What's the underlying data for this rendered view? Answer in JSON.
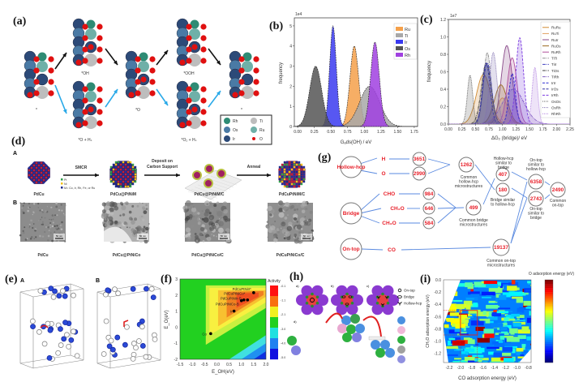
{
  "panel_labels": {
    "a": "(a)",
    "b": "(b)",
    "c": "(c)",
    "d": "(d)",
    "e": "(e)",
    "f": "(f)",
    "g": "(g)",
    "h": "(h)",
    "i": "(i)"
  },
  "panel_a": {
    "states": [
      "*",
      "*OH",
      "*O + Hₛ",
      "*O",
      "*OOH",
      "*O₂ + Hₛ",
      "*"
    ],
    "legend": [
      {
        "label": "Rh",
        "color": "#2e8b74"
      },
      {
        "label": "Ti",
        "color": "#bdbdbd"
      },
      {
        "label": "Os",
        "color": "#4a7aa5"
      },
      {
        "label": "Ru",
        "color": "#6fb0a8"
      },
      {
        "label": "Ir",
        "color": "#2c4a78"
      },
      {
        "label": "O",
        "color": "#e01010"
      }
    ],
    "arrow_colors": {
      "path1": "#111111",
      "path2": "#29a9e8"
    }
  },
  "panel_d": {
    "row_labels": {
      "A": "A",
      "B": "B"
    },
    "steps": [
      "SMCR",
      "Deposit on Carbon Support",
      "Anneal"
    ],
    "particles": [
      "PdCu",
      "PdCu@PtNiM",
      "PdCu@PtNiM/C",
      "PdCuPtNiM/C"
    ],
    "legend": [
      {
        "label": "Pt",
        "color": "#2fa04a"
      },
      {
        "label": "Ni",
        "color": "#f2c21a"
      },
      {
        "label": "M= Co, Ir, Rh, Fe, or Ru",
        "color": "#1a2a8a"
      }
    ],
    "tem_labels": [
      "PdCu",
      "PdCu@PtNiCo",
      "PdCu@PtNiCo/C",
      "PdCuPtNiCo/C"
    ],
    "scale_bar": "50 nm"
  },
  "panel_e": {
    "sub_labels": [
      "A",
      "B"
    ]
  },
  "panel_g": {
    "sites": [
      "Hollow-hcp",
      "Bridge",
      "On-top"
    ],
    "adsorbates": [
      "H",
      "O",
      "CHO",
      "CH₂O",
      "CH₃O",
      "CO"
    ],
    "counts": {
      "H": "3651",
      "O": "2990",
      "common_hollow": "1262",
      "CHO": "984",
      "CH2O": "646",
      "CH3O": "584",
      "common_bridge": "499",
      "hollow_sim_bridge": "407",
      "bridge_sim_hollow": "180",
      "ontop_sim_hollow": "6358",
      "ontop_sim_bridge": "2743",
      "common_ontop": "2490",
      "CO": "19137"
    },
    "captions": {
      "common_hollow": "Common hollow-hcp microstructures",
      "hollow_sim_bridge": "Hollow-hcp similar to bridge",
      "bridge_sim_hollow": "Bridge similar to hollow-hcp",
      "ontop_sim_hollow": "On-top similar to hollow-hcp",
      "ontop_sim_bridge": "On-top similar to bridge",
      "common_ontop": "Common on-top",
      "common_bridge": "Common bridge microstructures",
      "common_ontop_micro": "Common on-top microstructures"
    }
  },
  "panel_h": {
    "sub_labels": [
      "a)",
      "b)",
      "c)",
      "d)"
    ],
    "site_legend": [
      "On-top",
      "Bridge",
      "Hollow-hcp"
    ]
  },
  "chart_data": [
    {
      "panel": "b",
      "type": "area",
      "xlabel": "Gₐds(OH) / eV",
      "ylabel": "frequency",
      "y_multiplier": "1e4",
      "xlim": [
        -0.05,
        1.8
      ],
      "ylim": [
        0,
        5.4
      ],
      "xticks": [
        "0.00",
        "0.25",
        "0.50",
        "0.75",
        "1.00",
        "1.25",
        "1.50",
        "1.75"
      ],
      "yticks": [
        "0",
        "1",
        "2",
        "3",
        "4",
        "5"
      ],
      "legend_position": "top-right",
      "series": [
        {
          "name": "Ru",
          "color": "#f5a04a",
          "mean": 0.85,
          "peak": 4.0,
          "sd": 0.065
        },
        {
          "name": "Ti",
          "color": "#a8a8a8",
          "mean": 1.08,
          "peak": 2.0,
          "sd": 0.15
        },
        {
          "name": "Ir",
          "color": "#3a3af0",
          "mean": 0.53,
          "peak": 5.0,
          "sd": 0.05
        },
        {
          "name": "Os",
          "color": "#555555",
          "mean": 0.27,
          "peak": 3.0,
          "sd": 0.09
        },
        {
          "name": "Rh",
          "color": "#a040e0",
          "mean": 1.16,
          "peak": 4.2,
          "sd": 0.065
        }
      ]
    },
    {
      "panel": "c",
      "type": "area",
      "xlabel": "ΔG₂ (bridge)/ eV",
      "ylabel": "frequency",
      "y_multiplier": "1e7",
      "xlim": [
        0,
        2.25
      ],
      "ylim": [
        0,
        1.2
      ],
      "xticks": [
        "0.00",
        "0.25",
        "0.50",
        "0.75",
        "1.00",
        "1.25",
        "1.50",
        "1.75",
        "2.00",
        "2.25"
      ],
      "yticks": [
        "0.0",
        "0.2",
        "0.4",
        "0.6",
        "0.8",
        "1.0",
        "1.2"
      ],
      "legend_position": "top-right",
      "series": [
        {
          "name": "RuRu",
          "color": "#d08a30",
          "mean": 0.65,
          "peak": 0.57,
          "sd": 0.13,
          "style": "solid"
        },
        {
          "name": "RuTi",
          "color": "#e0a060",
          "mean": 1.0,
          "peak": 0.3,
          "sd": 0.1,
          "style": "solid"
        },
        {
          "name": "RuIr",
          "color": "#8a4a8a",
          "mean": 1.08,
          "peak": 0.9,
          "sd": 0.1,
          "style": "solid"
        },
        {
          "name": "RuOs",
          "color": "#9a6a20",
          "mean": 0.97,
          "peak": 0.45,
          "sd": 0.12,
          "style": "solid"
        },
        {
          "name": "RuRh",
          "color": "#b0509a",
          "mean": 1.18,
          "peak": 0.76,
          "sd": 0.09,
          "style": "solid"
        },
        {
          "name": "TiTi",
          "color": "#909090",
          "mean": 0.72,
          "peak": 0.82,
          "sd": 0.07,
          "style": "dashdot"
        },
        {
          "name": "TiIr",
          "color": "#4040c0",
          "mean": 0.72,
          "peak": 0.7,
          "sd": 0.08,
          "style": "dashdot"
        },
        {
          "name": "TiOs",
          "color": "#404040",
          "mean": 0.7,
          "peak": 0.7,
          "sd": 0.09,
          "style": "dashdot"
        },
        {
          "name": "TiRh",
          "color": "#8060c0",
          "mean": 1.2,
          "peak": 0.4,
          "sd": 0.2,
          "style": "dashdot"
        },
        {
          "name": "IrIr",
          "color": "#2a2ad0",
          "mean": 1.18,
          "peak": 0.58,
          "sd": 0.06,
          "style": "dashed"
        },
        {
          "name": "IrOs",
          "color": "#3030a0",
          "mean": 0.7,
          "peak": 0.7,
          "sd": 0.07,
          "style": "dashed"
        },
        {
          "name": "IrRh",
          "color": "#7a3ae0",
          "mean": 1.32,
          "peak": 0.99,
          "sd": 0.07,
          "style": "dashed"
        },
        {
          "name": "OsOs",
          "color": "#606060",
          "mean": 0.4,
          "peak": 0.56,
          "sd": 0.05,
          "style": "dotted"
        },
        {
          "name": "OsRh",
          "color": "#8070b0",
          "mean": 0.83,
          "peak": 0.82,
          "sd": 0.07,
          "style": "dotted"
        },
        {
          "name": "RhRh",
          "color": "#b080e0",
          "mean": 1.6,
          "peak": 0.65,
          "sd": 0.05,
          "style": "dotted"
        }
      ]
    },
    {
      "panel": "f",
      "type": "heatmap",
      "xlabel": "E_OH(eV)",
      "ylabel": "E_O(eV)",
      "xlim": [
        -1.5,
        2.0
      ],
      "ylim": [
        -2,
        3
      ],
      "xticks": [
        "-1.5",
        "-1.0",
        "-0.5",
        "0.0",
        "0.5",
        "1.0",
        "1.5",
        "2.0"
      ],
      "yticks": [
        "-2",
        "-1",
        "0",
        "1",
        "2",
        "3"
      ],
      "colorbar_title": "Activity",
      "colorbar_ticks": [
        "-0.1",
        "-1.1",
        "-2.1",
        "-3.0",
        "-4.0",
        "-5.0"
      ],
      "points": [
        {
          "label": "Co",
          "x": -0.25,
          "y": -0.4
        },
        {
          "label": "Ir",
          "x": 0.7,
          "y": 1.0
        },
        {
          "label": "PdCuPtNiCo-B",
          "x": 1.0,
          "y": 1.65
        },
        {
          "label": "PdCuPtNiIr-B",
          "x": 1.1,
          "y": 1.7
        },
        {
          "label": "PdCuPtNiCo*",
          "x": 1.25,
          "y": 1.7
        },
        {
          "label": "PdCuPtNiIr*",
          "x": 1.5,
          "y": 2.15
        }
      ]
    },
    {
      "panel": "i",
      "type": "heatmap",
      "xlabel": "CO adsorption energy (eV)",
      "ylabel": "CH₃O adsorption energy (eV)",
      "xlim": [
        -2.3,
        -0.75
      ],
      "ylim": [
        -1.35,
        0.0
      ],
      "xticks": [
        "-2.2",
        "-2.0",
        "-1.8",
        "-1.6",
        "-1.4",
        "-1.2",
        "-1.0",
        "-0.8"
      ],
      "yticks": [
        "0.0",
        "-0.2",
        "-0.4",
        "-0.6",
        "-0.8",
        "-1.0",
        "-1.2"
      ],
      "colorbar_title": "O adsorption energy (eV)",
      "highlight_box": {
        "x": [
          -2.0,
          -1.7
        ],
        "y": [
          -0.9,
          -0.5
        ],
        "color": "#e02020"
      }
    }
  ]
}
